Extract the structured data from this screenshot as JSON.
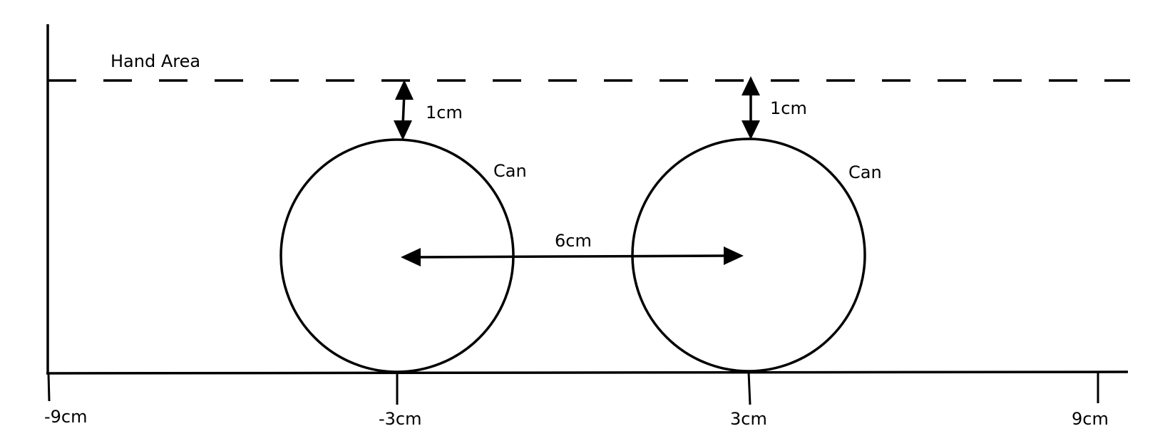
{
  "diagram": {
    "hand_area_label": "Hand Area",
    "can_label": "Can",
    "gap_label": "1cm",
    "spacing_label": "6cm",
    "ticks": [
      "-9cm",
      "-3cm",
      "3cm",
      "9cm"
    ],
    "line_color": "#000000",
    "background_color": "#ffffff"
  }
}
